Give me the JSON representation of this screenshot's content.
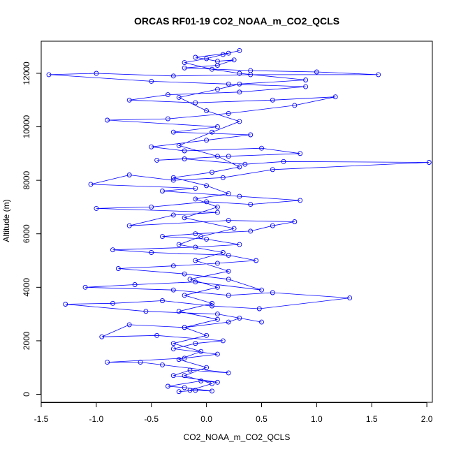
{
  "chart_data": {
    "type": "line",
    "title": "ORCAS RF01-19 CO2_NOAA_m_CO2_QCLS",
    "xlabel": "CO2_NOAA_m_CO2_QCLS",
    "ylabel": "Altitude (m)",
    "xlim": [
      -1.5,
      2.05
    ],
    "ylim": [
      -300,
      13200
    ],
    "xticks": [
      -1.5,
      -1.0,
      -0.5,
      0.0,
      0.5,
      1.0,
      1.5,
      2.0
    ],
    "xtick_labels": [
      "-1.5",
      "-1.0",
      "-0.5",
      "0.0",
      "0.5",
      "1.0",
      "1.5",
      "2.0"
    ],
    "yticks": [
      0,
      2000,
      4000,
      6000,
      8000,
      10000,
      12000
    ],
    "ytick_labels": [
      "0",
      "2000",
      "4000",
      "6000",
      "8000",
      "10000",
      "12000"
    ],
    "grid": false,
    "legend": "none",
    "series_color": "#0000ff",
    "marker": "open-circle",
    "series": [
      {
        "values": [
          [
            -0.25,
            100
          ],
          [
            -0.1,
            150
          ],
          [
            0.05,
            120
          ],
          [
            -0.2,
            250
          ],
          [
            -0.35,
            300
          ],
          [
            -0.05,
            500
          ],
          [
            0.1,
            450
          ],
          [
            -0.3,
            700
          ],
          [
            -0.15,
            900
          ],
          [
            0.2,
            800
          ],
          [
            -0.4,
            1100
          ],
          [
            -0.6,
            1200
          ],
          [
            -0.9,
            1200
          ],
          [
            -0.2,
            1350
          ],
          [
            0.1,
            1500
          ],
          [
            -0.3,
            1700
          ],
          [
            -0.1,
            1900
          ],
          [
            0.15,
            2000
          ],
          [
            -0.45,
            2200
          ],
          [
            -0.95,
            2150
          ],
          [
            -0.7,
            2600
          ],
          [
            -0.2,
            2500
          ],
          [
            0.2,
            2700
          ],
          [
            0.3,
            2850
          ],
          [
            0.5,
            2700
          ],
          [
            0.1,
            3000
          ],
          [
            -0.55,
            3100
          ],
          [
            -1.28,
            3370
          ],
          [
            -0.85,
            3400
          ],
          [
            -0.4,
            3500
          ],
          [
            0.05,
            3300
          ],
          [
            0.48,
            3200
          ],
          [
            1.3,
            3600
          ],
          [
            0.6,
            3800
          ],
          [
            0.2,
            3700
          ],
          [
            -0.3,
            3900
          ],
          [
            -1.1,
            4000
          ],
          [
            -0.65,
            4100
          ],
          [
            -0.1,
            4200
          ],
          [
            0.5,
            3900
          ],
          [
            0.2,
            4300
          ],
          [
            -0.2,
            4500
          ],
          [
            -0.8,
            4700
          ],
          [
            -0.3,
            4800
          ],
          [
            0.1,
            4900
          ],
          [
            0.45,
            5000
          ],
          [
            0.2,
            5200
          ],
          [
            -0.5,
            5300
          ],
          [
            -0.85,
            5400
          ],
          [
            -0.1,
            5500
          ],
          [
            0.3,
            5600
          ],
          [
            0.0,
            5800
          ],
          [
            -0.4,
            5900
          ],
          [
            -0.1,
            6000
          ],
          [
            0.4,
            6100
          ],
          [
            0.6,
            6300
          ],
          [
            0.8,
            6450
          ],
          [
            0.2,
            6500
          ],
          [
            -0.7,
            6300
          ],
          [
            -0.3,
            6700
          ],
          [
            0.1,
            6800
          ],
          [
            -1.0,
            6950
          ],
          [
            -0.5,
            7000
          ],
          [
            0.0,
            7200
          ],
          [
            0.4,
            7100
          ],
          [
            0.85,
            7250
          ],
          [
            0.3,
            7400
          ],
          [
            -0.4,
            7600
          ],
          [
            -0.1,
            7700
          ],
          [
            -1.05,
            7850
          ],
          [
            -0.7,
            8200
          ],
          [
            -0.3,
            8000
          ],
          [
            0.15,
            8100
          ],
          [
            0.6,
            8400
          ],
          [
            2.02,
            8670
          ],
          [
            0.7,
            8700
          ],
          [
            0.35,
            8600
          ],
          [
            -0.2,
            8800
          ],
          [
            -0.45,
            8750
          ],
          [
            0.2,
            8900
          ],
          [
            0.85,
            9000
          ],
          [
            0.5,
            9200
          ],
          [
            -0.2,
            9100
          ],
          [
            -0.5,
            9250
          ],
          [
            0.0,
            9500
          ],
          [
            0.4,
            9700
          ],
          [
            -0.3,
            9800
          ],
          [
            0.1,
            10000
          ],
          [
            -0.9,
            10250
          ],
          [
            -0.35,
            10300
          ],
          [
            0.2,
            10500
          ],
          [
            0.8,
            10800
          ],
          [
            1.17,
            11120
          ],
          [
            0.6,
            11000
          ],
          [
            -0.1,
            10900
          ],
          [
            -0.7,
            11000
          ],
          [
            -0.35,
            11200
          ],
          [
            0.3,
            11300
          ],
          [
            0.9,
            11500
          ],
          [
            0.2,
            11600
          ],
          [
            -0.5,
            11700
          ],
          [
            -1.43,
            11950
          ],
          [
            -1.0,
            12000
          ],
          [
            -0.3,
            11900
          ],
          [
            0.4,
            11950
          ],
          [
            1.56,
            11950
          ],
          [
            1.0,
            12050
          ],
          [
            0.4,
            12100
          ],
          [
            -0.2,
            12200
          ],
          [
            0.1,
            12300
          ],
          [
            0.25,
            12500
          ],
          [
            0.1,
            12450
          ],
          [
            -0.1,
            12600
          ],
          [
            0.2,
            12750
          ],
          [
            0.3,
            12850
          ],
          [
            0.15,
            12700
          ],
          [
            0.0,
            12550
          ],
          [
            -0.2,
            12400
          ],
          [
            0.05,
            12150
          ],
          [
            0.3,
            12000
          ],
          [
            0.9,
            11750
          ],
          [
            0.3,
            11600
          ],
          [
            0.1,
            11400
          ],
          [
            -0.25,
            11100
          ],
          [
            0.0,
            10600
          ],
          [
            0.3,
            10200
          ],
          [
            0.05,
            9800
          ],
          [
            -0.25,
            9300
          ],
          [
            0.1,
            8900
          ],
          [
            0.3,
            8500
          ],
          [
            0.05,
            8300
          ],
          [
            -0.3,
            8100
          ],
          [
            0.0,
            7800
          ],
          [
            0.2,
            7500
          ],
          [
            -0.1,
            7300
          ],
          [
            0.1,
            7000
          ],
          [
            -0.2,
            6600
          ],
          [
            0.25,
            6200
          ],
          [
            -0.05,
            5900
          ],
          [
            -0.25,
            5600
          ],
          [
            0.15,
            5300
          ],
          [
            -0.1,
            5000
          ],
          [
            0.2,
            4600
          ],
          [
            -0.15,
            4300
          ],
          [
            0.1,
            4000
          ],
          [
            -0.2,
            3700
          ],
          [
            0.05,
            3400
          ],
          [
            -0.25,
            3100
          ],
          [
            0.1,
            2800
          ],
          [
            -0.2,
            2500
          ],
          [
            0.0,
            2200
          ],
          [
            -0.3,
            1900
          ],
          [
            -0.05,
            1600
          ],
          [
            -0.25,
            1300
          ],
          [
            0.0,
            1000
          ],
          [
            -0.2,
            700
          ],
          [
            0.05,
            400
          ],
          [
            -0.15,
            150
          ]
        ]
      }
    ]
  }
}
